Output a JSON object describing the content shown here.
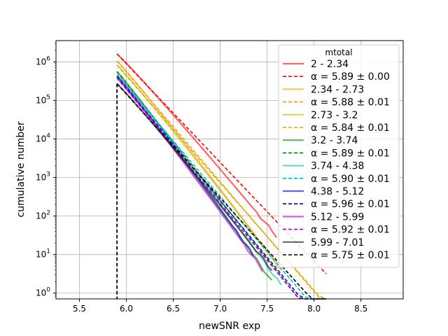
{
  "chart_data": {
    "type": "line",
    "title": "",
    "xlabel": "newSNR exp",
    "ylabel": "cumulative number",
    "xlim": [
      5.25,
      8.95
    ],
    "ylim_log10": [
      -0.15,
      6.55
    ],
    "yscale": "log",
    "grid": true,
    "legend": {
      "title": "mtotal",
      "placement": "top-right"
    },
    "x_ticks": [
      5.5,
      6.0,
      6.5,
      7.0,
      7.5,
      8.0,
      8.5
    ],
    "x_tick_labels": [
      "5.5",
      "6.0",
      "6.5",
      "7.0",
      "7.5",
      "8.0",
      "8.5"
    ],
    "y_ticks": [
      0,
      1,
      2,
      3,
      4,
      5,
      6
    ],
    "y_tick_labels": [
      "10^0",
      "10^1",
      "10^2",
      "10^3",
      "10^4",
      "10^5",
      "10^6"
    ],
    "threshold": 5.9,
    "series": [
      {
        "name": "2 - 2.34",
        "fit_name": "α = 5.89 ± 0.00",
        "color": "#ff0000",
        "n0": 1600000,
        "alpha": 5.89,
        "x_end": 7.6,
        "y_end": 30
      },
      {
        "name": "2.34 - 2.73",
        "fit_name": "α = 5.88 ± 0.01",
        "color": "#ff9900",
        "n0": 1050000,
        "alpha": 5.88,
        "x_end": 7.65,
        "y_end": 4
      },
      {
        "name": "2.73 - 3.2",
        "fit_name": "α = 5.84 ± 0.01",
        "color": "#c8b400",
        "n0": 820000,
        "alpha": 5.84,
        "x_end": 7.6,
        "y_end": 6
      },
      {
        "name": "3.2 - 3.74",
        "fit_name": "α = 5.89 ± 0.01",
        "color": "#008000",
        "n0": 560000,
        "alpha": 5.89,
        "x_end": 7.55,
        "y_end": 2
      },
      {
        "name": "3.74 - 4.38",
        "fit_name": "α = 5.90 ± 0.01",
        "color": "#00c0c0",
        "n0": 470000,
        "alpha": 5.9,
        "x_end": 7.65,
        "y_end": 1.6
      },
      {
        "name": "4.38 - 5.12",
        "fit_name": "α = 5.96 ± 0.01",
        "color": "#0000d0",
        "n0": 420000,
        "alpha": 5.96,
        "x_end": 7.35,
        "y_end": 10
      },
      {
        "name": "5.12 - 5.99",
        "fit_name": "α = 5.92 ± 0.01",
        "color": "#b000c0",
        "n0": 380000,
        "alpha": 5.92,
        "x_end": 7.45,
        "y_end": 4
      },
      {
        "name": "5.99 - 7.01",
        "fit_name": "α = 5.75 ± 0.01",
        "color": "#000000",
        "n0": 270000,
        "alpha": 5.75,
        "x_end": 7.55,
        "y_end": 4
      }
    ],
    "fit_x_end": 8.13
  }
}
